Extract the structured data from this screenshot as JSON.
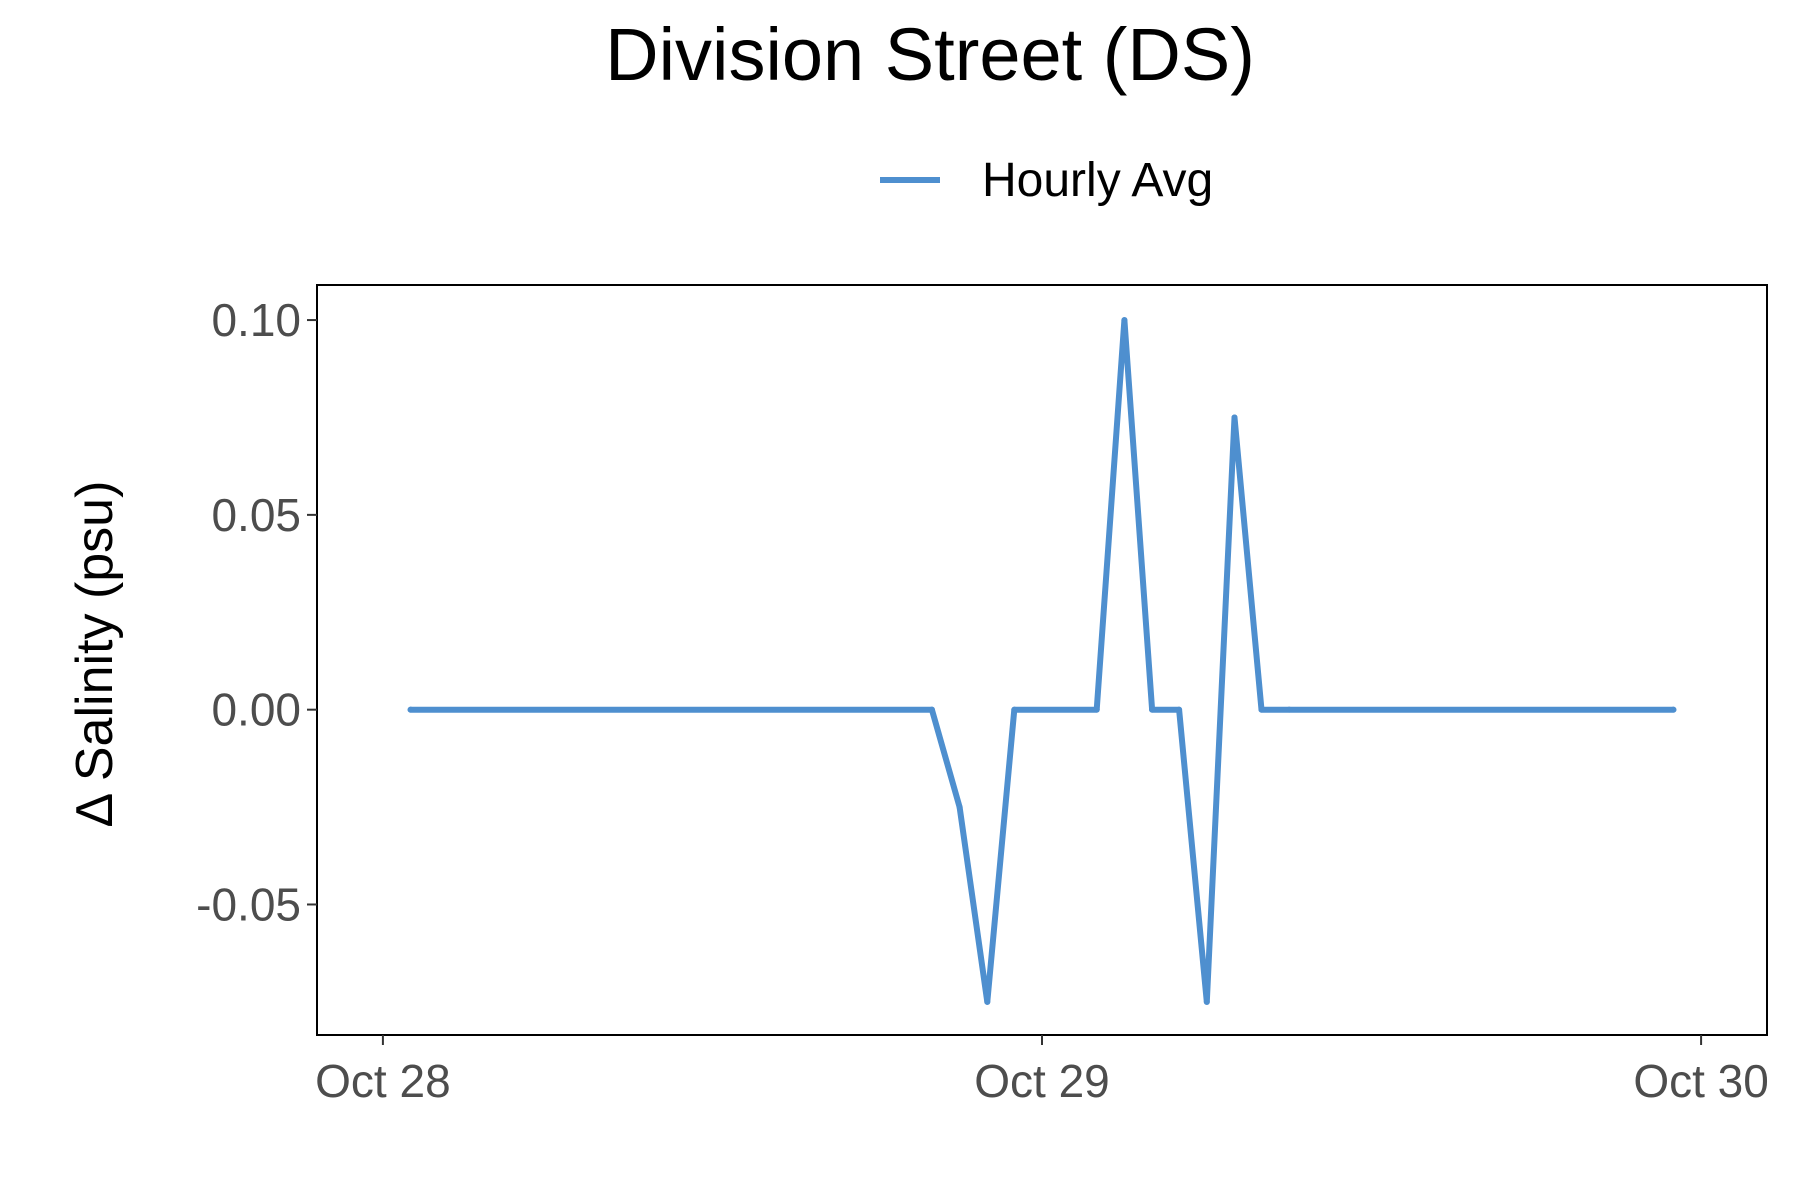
{
  "chart_data": {
    "type": "line",
    "title": "Division Street (DS)",
    "xlabel": "",
    "ylabel": "Δ Salinity (psu)",
    "x_unit": "days since Oct 28",
    "x_ticks": [
      {
        "value": 0,
        "label": "Oct 28"
      },
      {
        "value": 1,
        "label": "Oct 29"
      },
      {
        "value": 2,
        "label": "Oct 30"
      }
    ],
    "y_ticks": [
      {
        "value": 0.1,
        "label": "0.10"
      },
      {
        "value": 0.05,
        "label": "0.05"
      },
      {
        "value": 0.0,
        "label": "0.00"
      },
      {
        "value": -0.05,
        "label": "-0.05"
      }
    ],
    "xlim": [
      -0.1,
      2.1
    ],
    "ylim": [
      -0.0835,
      0.109
    ],
    "grid": false,
    "legend_position": "top",
    "series": [
      {
        "name": "Hourly Avg",
        "color": "#4E8FCF",
        "x": [
          0.042,
          0.833,
          0.875,
          0.917,
          0.958,
          1.083,
          1.125,
          1.167,
          1.208,
          1.25,
          1.292,
          1.333,
          1.375,
          1.958
        ],
        "y": [
          0.0,
          0.0,
          -0.025,
          -0.075,
          0.0,
          0.0,
          0.1,
          0.0,
          0.0,
          -0.075,
          0.075,
          0.0,
          0.0,
          0.0
        ]
      }
    ]
  }
}
